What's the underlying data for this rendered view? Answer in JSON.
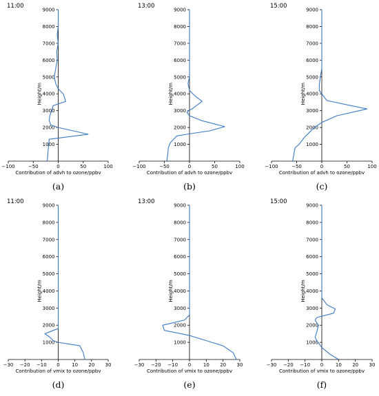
{
  "chart_data": [
    {
      "type": "line",
      "title": "11:00",
      "xlabel": "Contribution of advh to ozone/ppbv",
      "ylabel": "Height/m",
      "xlim": [
        -100,
        100
      ],
      "ylim": [
        0,
        9000
      ],
      "xticks": [
        "−100",
        "−50",
        "0",
        "50",
        "100"
      ],
      "yticks": [
        "1000",
        "2000",
        "3000",
        "4000",
        "5000",
        "6000",
        "7000",
        "8000",
        "9000"
      ],
      "caption": "(a)",
      "series": [
        {
          "points": [
            [
              -22,
              0
            ],
            [
              -20,
              700
            ],
            [
              -18,
              1300
            ],
            [
              60,
              1600
            ],
            [
              30,
              1800
            ],
            [
              0,
              2000
            ],
            [
              -15,
              2150
            ],
            [
              -18,
              2400
            ],
            [
              -17,
              2700
            ],
            [
              -13,
              3000
            ],
            [
              -10,
              3300
            ],
            [
              15,
              3550
            ],
            [
              10,
              4000
            ],
            [
              0,
              4300
            ],
            [
              -5,
              4600
            ],
            [
              -8,
              5000
            ],
            [
              -5,
              5500
            ],
            [
              -2,
              6000
            ],
            [
              -3,
              6500
            ],
            [
              0,
              7000
            ],
            [
              -2,
              7500
            ],
            [
              0,
              8000
            ],
            [
              0,
              9000
            ]
          ]
        }
      ]
    },
    {
      "type": "line",
      "title": "13:00",
      "xlabel": "Contribution of advh to ozone/ppbv",
      "ylabel": "Height/m",
      "xlim": [
        -100,
        100
      ],
      "ylim": [
        0,
        9000
      ],
      "xticks": [
        "−100",
        "−50",
        "0",
        "50",
        "100"
      ],
      "yticks": [
        "1000",
        "2000",
        "3000",
        "4000",
        "5000",
        "6000",
        "7000",
        "8000",
        "9000"
      ],
      "caption": "(b)",
      "series": [
        {
          "points": [
            [
              -45,
              0
            ],
            [
              -43,
              500
            ],
            [
              -42,
              800
            ],
            [
              -38,
              1100
            ],
            [
              -25,
              1500
            ],
            [
              -5,
              1600
            ],
            [
              40,
              1800
            ],
            [
              70,
              2050
            ],
            [
              25,
              2400
            ],
            [
              0,
              2700
            ],
            [
              -5,
              2900
            ],
            [
              -2,
              3000
            ],
            [
              5,
              3100
            ],
            [
              25,
              3550
            ],
            [
              10,
              3900
            ],
            [
              0,
              4200
            ],
            [
              -3,
              4600
            ],
            [
              0,
              5000
            ],
            [
              0,
              6000
            ],
            [
              0,
              7000
            ],
            [
              0,
              8000
            ],
            [
              0,
              9000
            ]
          ]
        }
      ]
    },
    {
      "type": "line",
      "title": "15:00",
      "xlabel": "Contribution of advh to ozone/ppbv",
      "ylabel": "Height/m",
      "xlim": [
        -100,
        100
      ],
      "ylim": [
        0,
        9000
      ],
      "xticks": [
        "−100",
        "−50",
        "0",
        "50",
        "100"
      ],
      "yticks": [
        "1000",
        "2000",
        "3000",
        "4000",
        "5000",
        "6000",
        "7000",
        "8000",
        "9000"
      ],
      "caption": "(c)",
      "series": [
        {
          "points": [
            [
              -58,
              0
            ],
            [
              -55,
              500
            ],
            [
              -53,
              800
            ],
            [
              -45,
              1000
            ],
            [
              -35,
              1400
            ],
            [
              -25,
              1700
            ],
            [
              -15,
              2000
            ],
            [
              0,
              2300
            ],
            [
              30,
              2700
            ],
            [
              90,
              3100
            ],
            [
              10,
              3600
            ],
            [
              0,
              4000
            ],
            [
              -5,
              4200
            ],
            [
              -5,
              4500
            ],
            [
              -3,
              5000
            ],
            [
              0,
              5500
            ],
            [
              0,
              6000
            ],
            [
              0,
              7000
            ],
            [
              0,
              8000
            ],
            [
              0,
              9000
            ]
          ]
        }
      ]
    },
    {
      "type": "line",
      "title": "11:00",
      "xlabel": "Contribution of vmix to ozone/ppbv",
      "ylabel": "Height/m",
      "xlim": [
        -30,
        30
      ],
      "ylim": [
        0,
        9000
      ],
      "xticks": [
        "−30",
        "−20",
        "−10",
        "0",
        "10",
        "20",
        "30"
      ],
      "yticks": [
        "1000",
        "2000",
        "3000",
        "4000",
        "5000",
        "6000",
        "7000",
        "8000",
        "9000"
      ],
      "caption": "(d)",
      "series": [
        {
          "points": [
            [
              16,
              0
            ],
            [
              15,
              400
            ],
            [
              13,
              800
            ],
            [
              0,
              1000
            ],
            [
              -3,
              1100
            ],
            [
              -5,
              1300
            ],
            [
              -8,
              1500
            ],
            [
              -3,
              1700
            ],
            [
              0,
              1800
            ],
            [
              0,
              2100
            ],
            [
              0,
              3000
            ],
            [
              0,
              4000
            ],
            [
              0,
              5000
            ],
            [
              0,
              6000
            ],
            [
              0,
              7000
            ],
            [
              0,
              8000
            ],
            [
              0,
              9000
            ]
          ]
        }
      ]
    },
    {
      "type": "line",
      "title": "13:00",
      "xlabel": "Contribution of vmix to ozone/ppbv",
      "ylabel": "Height/m",
      "xlim": [
        -30,
        30
      ],
      "ylim": [
        0,
        9000
      ],
      "xticks": [
        "−30",
        "−20",
        "−10",
        "0",
        "10",
        "20",
        "30"
      ],
      "yticks": [
        "1000",
        "2000",
        "3000",
        "4000",
        "5000",
        "6000",
        "7000",
        "8000",
        "9000"
      ],
      "caption": "(e)",
      "series": [
        {
          "points": [
            [
              28,
              0
            ],
            [
              26,
              400
            ],
            [
              20,
              800
            ],
            [
              10,
              1100
            ],
            [
              0,
              1400
            ],
            [
              -15,
              1700
            ],
            [
              -16,
              2000
            ],
            [
              -3,
              2300
            ],
            [
              0,
              2600
            ],
            [
              0,
              3000
            ],
            [
              0,
              4000
            ],
            [
              0,
              5000
            ],
            [
              0,
              6000
            ],
            [
              0,
              7000
            ],
            [
              0,
              8000
            ],
            [
              0,
              9000
            ]
          ]
        }
      ]
    },
    {
      "type": "line",
      "title": "15:00",
      "xlabel": "Contribution of vmix to ozone/ppbv",
      "ylabel": "Height/m",
      "xlim": [
        -30,
        30
      ],
      "ylim": [
        0,
        9000
      ],
      "xticks": [
        "−30",
        "−20",
        "−10",
        "0",
        "10",
        "20",
        "30"
      ],
      "yticks": [
        "1000",
        "2000",
        "3000",
        "4000",
        "5000",
        "6000",
        "7000",
        "8000",
        "9000"
      ],
      "caption": "(f)",
      "series": [
        {
          "points": [
            [
              10,
              0
            ],
            [
              5,
              300
            ],
            [
              0,
              700
            ],
            [
              -3,
              1100
            ],
            [
              -4,
              1300
            ],
            [
              -3,
              1600
            ],
            [
              -2,
              2000
            ],
            [
              -4,
              2300
            ],
            [
              -3,
              2450
            ],
            [
              7,
              2700
            ],
            [
              8,
              2950
            ],
            [
              3,
              3200
            ],
            [
              0,
              3600
            ],
            [
              0,
              4000
            ],
            [
              0,
              5000
            ],
            [
              0,
              6000
            ],
            [
              0,
              7000
            ],
            [
              0,
              8000
            ],
            [
              0,
              9000
            ]
          ]
        }
      ]
    }
  ],
  "colors": {
    "line": "#3a78c3",
    "axis": "#000000"
  }
}
